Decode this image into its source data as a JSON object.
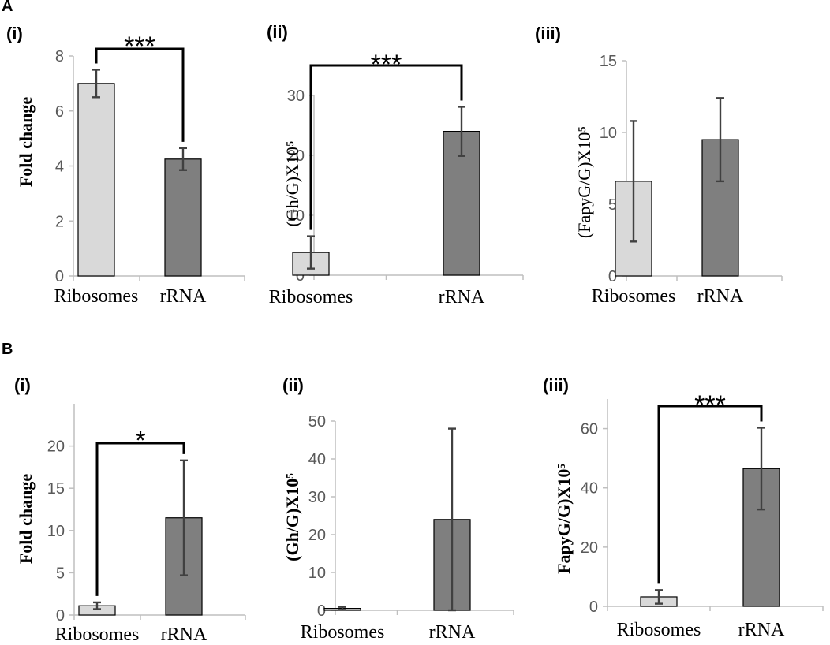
{
  "sections": [
    {
      "label": "A"
    },
    {
      "label": "B"
    }
  ],
  "chart_data": [
    {
      "type": "bar",
      "panel": "(i)",
      "title": "",
      "xlabel": "",
      "ylabel": "Fold change",
      "ylabel_bold": true,
      "categories": [
        "Ribosomes",
        "rRNA"
      ],
      "values": [
        7.0,
        4.25
      ],
      "errors": [
        0.5,
        0.4
      ],
      "colors": [
        "#d9d9d9",
        "#7f7f7f"
      ],
      "ylim": [
        0,
        8
      ],
      "yticks": [
        0,
        2,
        4,
        6,
        8
      ],
      "significance": {
        "label": "***",
        "between": [
          0,
          1
        ]
      },
      "grid": false
    },
    {
      "type": "bar",
      "panel": "(ii)",
      "title": "",
      "xlabel": "",
      "ylabel": "(Gh/G)X10⁵",
      "ylabel_bold": false,
      "categories": [
        "Ribosomes",
        "rRNA"
      ],
      "values": [
        3.8,
        24.0
      ],
      "errors": [
        2.7,
        4.1
      ],
      "colors": [
        "#d9d9d9",
        "#7f7f7f"
      ],
      "ylim": [
        0,
        30
      ],
      "yticks": [
        0,
        10,
        20,
        30
      ],
      "significance": {
        "label": "***",
        "between": [
          0,
          1
        ]
      },
      "grid": false
    },
    {
      "type": "bar",
      "panel": "(iii)",
      "title": "",
      "xlabel": "",
      "ylabel": "(FapyG/G)X10⁵",
      "ylabel_bold": false,
      "categories": [
        "Ribosomes",
        "rRNA"
      ],
      "values": [
        6.6,
        9.5
      ],
      "errors": [
        4.2,
        2.9
      ],
      "colors": [
        "#d9d9d9",
        "#7f7f7f"
      ],
      "ylim": [
        0,
        15
      ],
      "yticks": [
        0,
        5,
        10,
        15
      ],
      "significance": null,
      "grid": false
    },
    {
      "type": "bar",
      "panel": "(i)",
      "title": "",
      "xlabel": "",
      "ylabel": "Fold change",
      "ylabel_bold": true,
      "categories": [
        "Ribosomes",
        "rRNA"
      ],
      "values": [
        1.1,
        11.5
      ],
      "errors": [
        0.4,
        6.8
      ],
      "colors": [
        "#d9d9d9",
        "#7f7f7f"
      ],
      "ylim": [
        0,
        25
      ],
      "yticks": [
        0,
        5,
        10,
        15,
        20
      ],
      "significance": {
        "label": "*",
        "between": [
          0,
          1
        ]
      },
      "grid": false
    },
    {
      "type": "bar",
      "panel": "(ii)",
      "title": "",
      "xlabel": "",
      "ylabel": "(Gh/G)X10⁵",
      "ylabel_bold": true,
      "categories": [
        "Ribosomes",
        "rRNA"
      ],
      "values": [
        0.5,
        24.0
      ],
      "errors": [
        0.4,
        24.0
      ],
      "colors": [
        "#d9d9d9",
        "#7f7f7f"
      ],
      "ylim": [
        0,
        50
      ],
      "yticks": [
        0,
        10,
        20,
        30,
        40,
        50
      ],
      "significance": null,
      "grid": false
    },
    {
      "type": "bar",
      "panel": "(iii)",
      "title": "",
      "xlabel": "",
      "ylabel": "FapyG/G)X10⁵",
      "ylabel_bold": true,
      "categories": [
        "Ribosomes",
        "rRNA"
      ],
      "values": [
        3.2,
        46.5
      ],
      "errors": [
        2.3,
        13.8
      ],
      "colors": [
        "#d9d9d9",
        "#7f7f7f"
      ],
      "ylim": [
        0,
        70
      ],
      "yticks": [
        0,
        20,
        40,
        60
      ],
      "significance": {
        "label": "***",
        "between": [
          0,
          1
        ]
      },
      "grid": false
    }
  ]
}
